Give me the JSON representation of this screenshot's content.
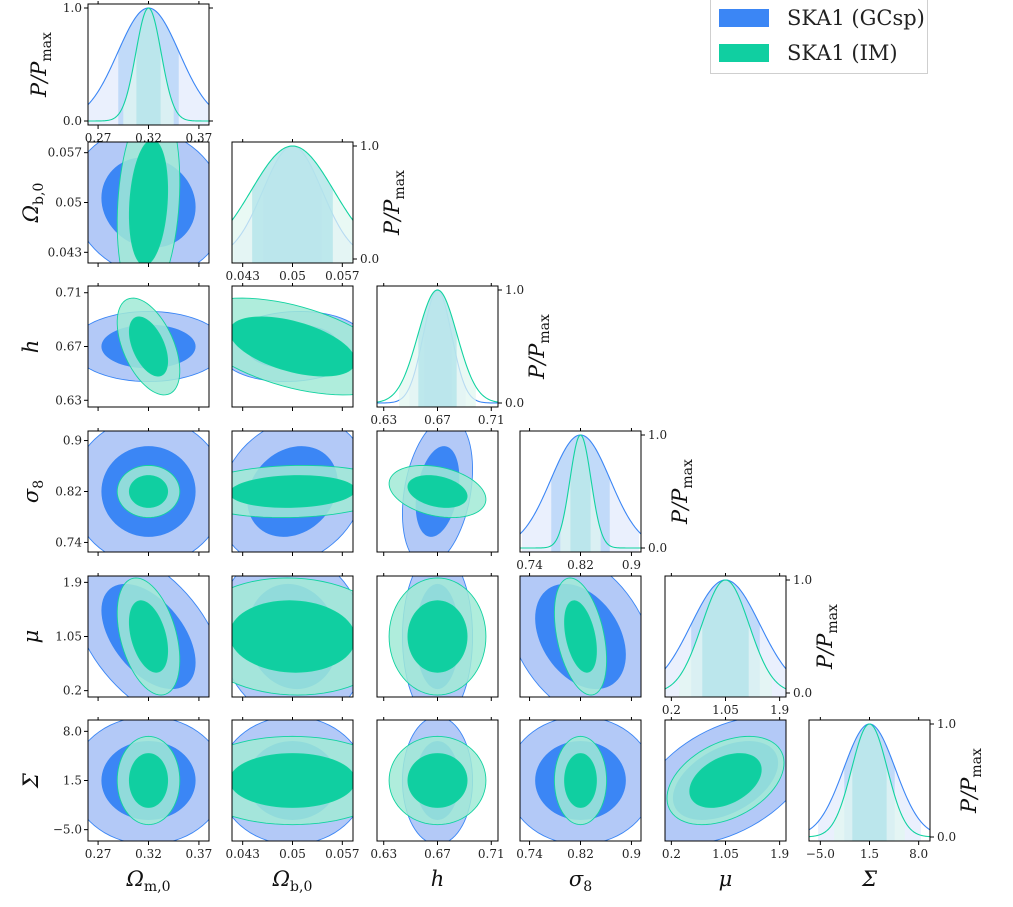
{
  "chart_data": {
    "type": "corner",
    "parameters": [
      {
        "name": "Omega_m0",
        "label": "Ωm,0",
        "label_main": "Ω",
        "label_sub": "m,0",
        "center": 0.32,
        "range": [
          0.26,
          0.38
        ],
        "ticks": [
          0.27,
          0.32,
          0.37
        ],
        "tick_labels": [
          "0.27",
          "0.32",
          "0.37"
        ]
      },
      {
        "name": "Omega_b0",
        "label": "Ωb,0",
        "label_main": "Ω",
        "label_sub": "b,0",
        "center": 0.05,
        "range": [
          0.0415,
          0.0585
        ],
        "ticks": [
          0.043,
          0.05,
          0.057
        ],
        "tick_labels": [
          "0.043",
          "0.05",
          "0.057"
        ]
      },
      {
        "name": "h",
        "label": "h",
        "label_main": "h",
        "label_sub": "",
        "center": 0.67,
        "range": [
          0.625,
          0.715
        ],
        "ticks": [
          0.63,
          0.67,
          0.71
        ],
        "tick_labels": [
          "0.63",
          "0.67",
          "0.71"
        ]
      },
      {
        "name": "sigma8",
        "label": "σ8",
        "label_main": "σ",
        "label_sub": "8",
        "center": 0.82,
        "range": [
          0.725,
          0.915
        ],
        "ticks": [
          0.74,
          0.82,
          0.9
        ],
        "tick_labels": [
          "0.74",
          "0.82",
          "0.9"
        ]
      },
      {
        "name": "mu",
        "label": "μ",
        "label_main": "μ",
        "label_sub": "",
        "center": 1.05,
        "range": [
          0.1,
          2.0
        ],
        "ticks": [
          0.2,
          1.05,
          1.9
        ],
        "tick_labels": [
          "0.2",
          "1.05",
          "1.9"
        ]
      },
      {
        "name": "Sigma",
        "label": "Σ",
        "label_main": "Σ",
        "label_sub": "",
        "center": 1.5,
        "range": [
          -6.5,
          9.5
        ],
        "ticks": [
          -5.0,
          1.5,
          8.0
        ],
        "tick_labels": [
          "−5.0",
          "1.5",
          "8.0"
        ]
      }
    ],
    "diag_ylabel": {
      "main": "P/P",
      "sub": "max"
    },
    "diag_ticks": [
      0.0,
      1.0
    ],
    "diag_tick_labels": [
      "0.0",
      "1.0"
    ],
    "series": [
      {
        "name": "SKA1 (GCsp)",
        "color": "#3b86f5",
        "fill_outer": "#b3c9f7",
        "fill_inner": "#3b86f5",
        "fill_1d_outer": "#e3ebfc",
        "fill_1d_inner": "#b3d3f7",
        "sigma": [
          0.0305,
          0.00415,
          0.0105,
          0.0465,
          0.54,
          3.4
        ]
      },
      {
        "name": "SKA1 (IM)",
        "color": "#12d3a0",
        "fill_outer": "#a1ead6",
        "fill_inner": "#10cfa1",
        "fill_1d_outer": "#e1f7f0",
        "fill_1d_inner": "#b0e3ea",
        "sigma": [
          0.0125,
          0.0058,
          0.0145,
          0.0165,
          0.37,
          2.35
        ]
      }
    ],
    "correlations": {
      "SKA1 (GCsp)": {
        "1-0": -0.1,
        "2-0": 0.0,
        "2-1": 0.1,
        "3-0": 0.0,
        "3-1": 0.2,
        "3-2": 0.3,
        "4-0": -0.5,
        "4-1": -0.1,
        "4-2": 0.0,
        "4-3": -0.35,
        "5-0": 0.0,
        "5-1": 0.0,
        "5-2": 0.0,
        "5-3": 0.0,
        "5-4": 0.45
      },
      "SKA1 (IM)": {
        "1-0": 0.2,
        "2-0": -0.5,
        "2-1": -0.5,
        "3-0": 0.0,
        "3-1": 0.1,
        "3-2": -0.3,
        "4-0": -0.4,
        "4-1": -0.05,
        "4-2": 0.0,
        "4-3": -0.4,
        "5-0": 0.0,
        "5-1": 0.0,
        "5-2": 0.0,
        "5-3": 0.0,
        "5-4": 0.4
      }
    },
    "legend_position": "top-right"
  }
}
